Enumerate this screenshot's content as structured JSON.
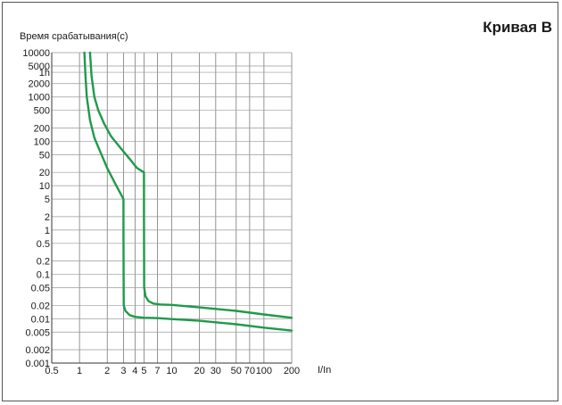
{
  "chart_data": {
    "type": "line",
    "title": "Кривая B",
    "ylabel": "Время срабатывания(с)",
    "xlabel": "I/In",
    "x_scale": "log",
    "y_scale": "log",
    "xlim": [
      0.5,
      200
    ],
    "ylim": [
      0.001,
      10000
    ],
    "grid": true,
    "x_ticks": [
      {
        "value": 0.5,
        "label": "0.5"
      },
      {
        "value": 1,
        "label": "1"
      },
      {
        "value": 2,
        "label": "2"
      },
      {
        "value": 3,
        "label": "3"
      },
      {
        "value": 4,
        "label": "4"
      },
      {
        "value": 5,
        "label": "5"
      },
      {
        "value": 7,
        "label": "7"
      },
      {
        "value": 10,
        "label": "10"
      },
      {
        "value": 20,
        "label": "20"
      },
      {
        "value": 30,
        "label": "30"
      },
      {
        "value": 50,
        "label": "50"
      },
      {
        "value": 70,
        "label": "70"
      },
      {
        "value": 100,
        "label": "100"
      },
      {
        "value": 200,
        "label": "200"
      }
    ],
    "y_ticks": [
      {
        "value": 10000,
        "label": "10000"
      },
      {
        "value": 5000,
        "label": "5000"
      },
      {
        "value": 3600,
        "label": "1h"
      },
      {
        "value": 2000,
        "label": "2000"
      },
      {
        "value": 1000,
        "label": "1000"
      },
      {
        "value": 500,
        "label": "500"
      },
      {
        "value": 200,
        "label": "200"
      },
      {
        "value": 100,
        "label": "100"
      },
      {
        "value": 50,
        "label": "50"
      },
      {
        "value": 20,
        "label": "20"
      },
      {
        "value": 10,
        "label": "10"
      },
      {
        "value": 5,
        "label": "5"
      },
      {
        "value": 2,
        "label": "2"
      },
      {
        "value": 1,
        "label": "1"
      },
      {
        "value": 0.5,
        "label": "0.5"
      },
      {
        "value": 0.2,
        "label": "0.2"
      },
      {
        "value": 0.1,
        "label": "0.1"
      },
      {
        "value": 0.05,
        "label": "0.05"
      },
      {
        "value": 0.02,
        "label": "0.02"
      },
      {
        "value": 0.01,
        "label": "0.01"
      },
      {
        "value": 0.005,
        "label": "0.005"
      },
      {
        "value": 0.002,
        "label": "0.002"
      },
      {
        "value": 0.001,
        "label": "0.001"
      }
    ],
    "series": [
      {
        "color": "#1f9a4a",
        "x": [
          1.13,
          1.16,
          1.2,
          1.3,
          1.45,
          1.7,
          2.0,
          2.5,
          3.0,
          3.0,
          3.02,
          3.15,
          3.5,
          4.0,
          5.0,
          7.0,
          10,
          20,
          50,
          100,
          200
        ],
        "y": [
          10000,
          3000,
          1000,
          300,
          120,
          55,
          25,
          10,
          5,
          1,
          0.02,
          0.015,
          0.012,
          0.011,
          0.0105,
          0.0103,
          0.0098,
          0.009,
          0.0075,
          0.0063,
          0.0054
        ]
      },
      {
        "color": "#1f9a4a",
        "x": [
          1.3,
          1.35,
          1.45,
          1.6,
          1.85,
          2.2,
          2.8,
          3.5,
          4.2,
          5.0,
          5.0,
          5.03,
          5.2,
          5.6,
          6.3,
          7.5,
          10,
          20,
          50,
          100,
          200
        ],
        "y": [
          10000,
          3000,
          1000,
          500,
          250,
          130,
          70,
          40,
          25,
          20,
          2,
          0.05,
          0.032,
          0.025,
          0.022,
          0.021,
          0.0205,
          0.018,
          0.015,
          0.0125,
          0.0105
        ]
      }
    ]
  }
}
